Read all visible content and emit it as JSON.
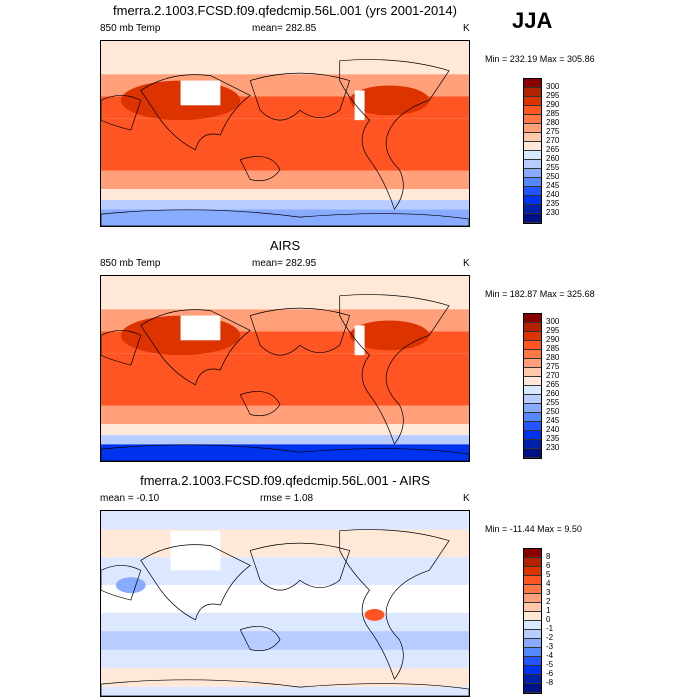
{
  "season": "JJA",
  "colors": {
    "abs": [
      "#8b0000",
      "#b22200",
      "#dd3300",
      "#ff5522",
      "#ff7744",
      "#ffa07a",
      "#ffc8aa",
      "#ffe8d8",
      "#d8e8ff",
      "#b8ccff",
      "#88aaff",
      "#5588ff",
      "#2255ff",
      "#0033ee",
      "#0022aa",
      "#001188"
    ]
  },
  "panels": [
    {
      "title": "fmerra.2.1003.FCSD.f09.qfedcmip.56L.001 (yrs 2001-2014)",
      "left": "850 mb Temp",
      "center": "mean= 282.85",
      "units": "K",
      "minmax": "Min = 232.19 Max = 305.86",
      "labels": [
        "300",
        "295",
        "290",
        "285",
        "280",
        "275",
        "270",
        "265",
        "260",
        "255",
        "250",
        "245",
        "240",
        "235",
        "230"
      ]
    },
    {
      "title": "AIRS",
      "left": "850 mb Temp",
      "center": "mean= 282.95",
      "units": "K",
      "minmax": "Min = 182.87 Max = 325.68",
      "labels": [
        "300",
        "295",
        "290",
        "285",
        "280",
        "275",
        "270",
        "265",
        "260",
        "255",
        "250",
        "245",
        "240",
        "235",
        "230"
      ]
    },
    {
      "title": "fmerra.2.1003.FCSD.f09.qfedcmip.56L.001 - AIRS",
      "left": "mean =  -0.10",
      "center": "rmse =   1.08",
      "units": "K",
      "minmax": "Min = -11.44 Max =   9.50",
      "labels": [
        "8",
        "6",
        "5",
        "4",
        "3",
        "2",
        "1",
        "0",
        "-1",
        "-2",
        "-3",
        "-4",
        "-5",
        "-6",
        "-8"
      ]
    }
  ]
}
